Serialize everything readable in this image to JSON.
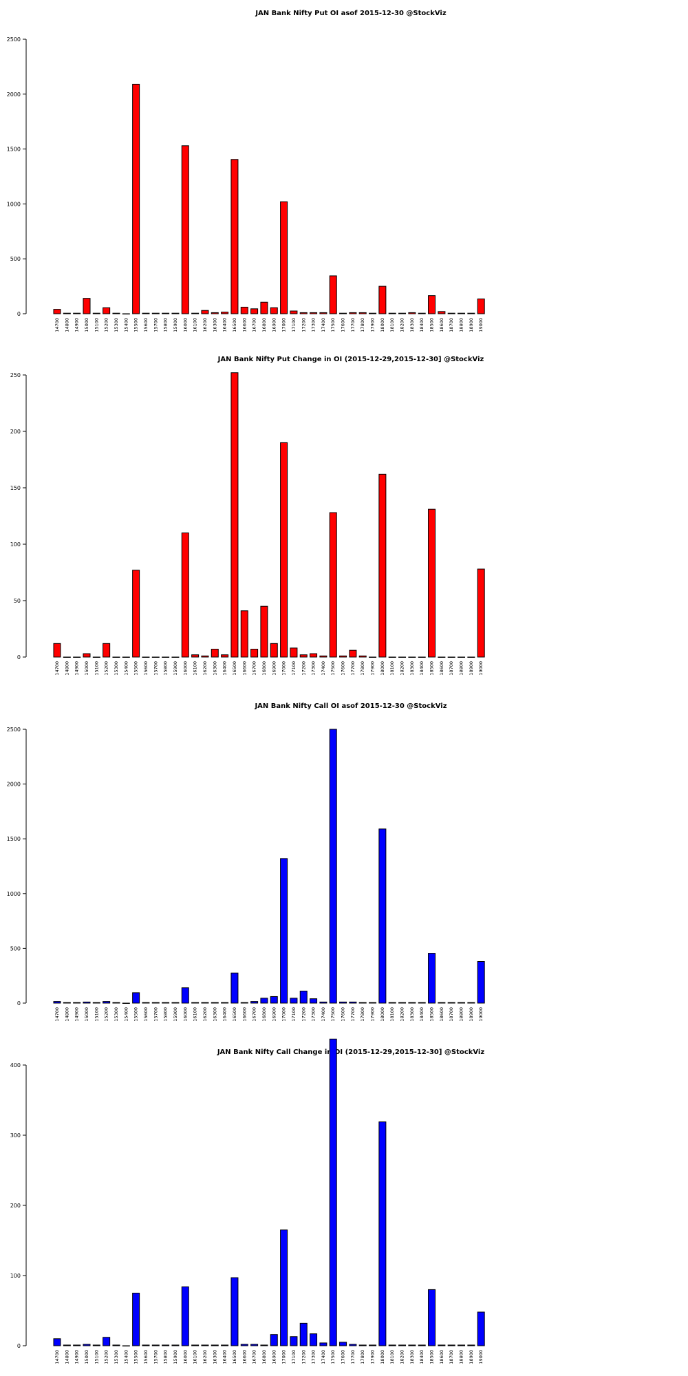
{
  "chart_data": [
    {
      "type": "bar",
      "title": "JAN Bank Nifty Put OI asof 2015-12-30 @StockViz",
      "color": "#ff0000",
      "ylim": [
        0,
        2500
      ],
      "yticks": [
        0,
        500,
        1000,
        1500,
        2000,
        2500
      ],
      "categories": [
        "14700",
        "14800",
        "14900",
        "15000",
        "15100",
        "15200",
        "15300",
        "15400",
        "15500",
        "15600",
        "15700",
        "15800",
        "15900",
        "16000",
        "16100",
        "16200",
        "16300",
        "16400",
        "16500",
        "16600",
        "16700",
        "16800",
        "16900",
        "17000",
        "17100",
        "17200",
        "17300",
        "17400",
        "17500",
        "17600",
        "17700",
        "17800",
        "17900",
        "18000",
        "18100",
        "18200",
        "18300",
        "18400",
        "18500",
        "18600",
        "18700",
        "18800",
        "18900",
        "19000"
      ],
      "values": [
        40,
        5,
        5,
        140,
        5,
        55,
        5,
        0,
        2090,
        5,
        5,
        5,
        5,
        1530,
        5,
        30,
        10,
        15,
        1405,
        60,
        45,
        105,
        55,
        1020,
        25,
        10,
        10,
        10,
        345,
        5,
        10,
        10,
        5,
        250,
        5,
        5,
        10,
        5,
        165,
        20,
        5,
        5,
        5,
        135
      ]
    },
    {
      "type": "bar",
      "title": "JAN Bank Nifty Put Change in OI (2015-12-29,2015-12-30] @StockViz",
      "color": "#ff0000",
      "ylim": [
        0,
        250
      ],
      "yticks": [
        0,
        50,
        100,
        150,
        200,
        250
      ],
      "categories": [
        "14700",
        "14800",
        "14900",
        "15000",
        "15100",
        "15200",
        "15300",
        "15400",
        "15500",
        "15600",
        "15700",
        "15800",
        "15900",
        "16000",
        "16100",
        "16200",
        "16300",
        "16400",
        "16500",
        "16600",
        "16700",
        "16800",
        "16900",
        "17000",
        "17100",
        "17200",
        "17300",
        "17400",
        "17500",
        "17600",
        "17700",
        "17800",
        "17900",
        "18000",
        "18100",
        "18200",
        "18300",
        "18400",
        "18500",
        "18600",
        "18700",
        "18800",
        "18900",
        "19000"
      ],
      "values": [
        12,
        0,
        0,
        3,
        0,
        12,
        0,
        0,
        77,
        0,
        0,
        0,
        0,
        110,
        2,
        1,
        7,
        2,
        252,
        41,
        7,
        45,
        12,
        190,
        8,
        2,
        3,
        1,
        128,
        1,
        6,
        1,
        0,
        162,
        0,
        0,
        0,
        0,
        131,
        0,
        0,
        0,
        0,
        78
      ]
    },
    {
      "type": "bar",
      "title": "JAN Bank Nifty Call OI asof 2015-12-30 @StockViz",
      "color": "#0000ff",
      "ylim": [
        0,
        2500
      ],
      "yticks": [
        0,
        500,
        1000,
        1500,
        2000,
        2500
      ],
      "categories": [
        "14700",
        "14800",
        "14900",
        "15000",
        "15100",
        "15200",
        "15300",
        "15400",
        "15500",
        "15600",
        "15700",
        "15800",
        "15900",
        "16000",
        "16100",
        "16200",
        "16300",
        "16400",
        "16500",
        "16600",
        "16700",
        "16800",
        "16900",
        "17000",
        "17100",
        "17200",
        "17300",
        "17400",
        "17500",
        "17600",
        "17700",
        "17800",
        "17900",
        "18000",
        "18100",
        "18200",
        "18300",
        "18400",
        "18500",
        "18600",
        "18700",
        "18800",
        "18900",
        "19000"
      ],
      "values": [
        15,
        5,
        5,
        10,
        5,
        15,
        5,
        0,
        95,
        5,
        5,
        5,
        5,
        140,
        5,
        5,
        5,
        5,
        275,
        5,
        15,
        45,
        60,
        1320,
        45,
        110,
        40,
        10,
        2500,
        10,
        10,
        5,
        5,
        1590,
        5,
        5,
        5,
        5,
        455,
        5,
        5,
        5,
        5,
        380
      ]
    },
    {
      "type": "bar",
      "title": "JAN Bank Nifty Call Change in OI (2015-12-29,2015-12-30] @StockViz",
      "color": "#0000ff",
      "ylim": [
        0,
        400
      ],
      "yticks": [
        0,
        100,
        200,
        300,
        400
      ],
      "categories": [
        "14700",
        "14800",
        "14900",
        "15000",
        "15100",
        "15200",
        "15300",
        "15400",
        "15500",
        "15600",
        "15700",
        "15800",
        "15900",
        "16000",
        "16100",
        "16200",
        "16300",
        "16400",
        "16500",
        "16600",
        "16700",
        "16800",
        "16900",
        "17000",
        "17100",
        "17200",
        "17300",
        "17400",
        "17500",
        "17600",
        "17700",
        "17800",
        "17900",
        "18000",
        "18100",
        "18200",
        "18300",
        "18400",
        "18500",
        "18600",
        "18700",
        "18800",
        "18900",
        "19000"
      ],
      "values": [
        10,
        1,
        1,
        2,
        1,
        12,
        1,
        0,
        75,
        1,
        1,
        1,
        1,
        84,
        1,
        1,
        1,
        1,
        97,
        2,
        2,
        1,
        16,
        165,
        13,
        32,
        17,
        4,
        437,
        5,
        2,
        1,
        1,
        319,
        1,
        1,
        1,
        1,
        80,
        1,
        1,
        1,
        1,
        48
      ]
    }
  ]
}
